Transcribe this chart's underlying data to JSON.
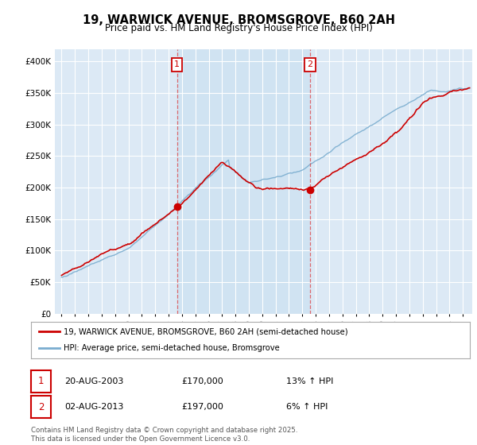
{
  "title": "19, WARWICK AVENUE, BROMSGROVE, B60 2AH",
  "subtitle": "Price paid vs. HM Land Registry's House Price Index (HPI)",
  "legend_line1": "19, WARWICK AVENUE, BROMSGROVE, B60 2AH (semi-detached house)",
  "legend_line2": "HPI: Average price, semi-detached house, Bromsgrove",
  "sale1_date": "20-AUG-2003",
  "sale1_price": "£170,000",
  "sale1_hpi": "13% ↑ HPI",
  "sale2_date": "02-AUG-2013",
  "sale2_price": "£197,000",
  "sale2_hpi": "6% ↑ HPI",
  "copyright": "Contains HM Land Registry data © Crown copyright and database right 2025.\nThis data is licensed under the Open Government Licence v3.0.",
  "line_color_red": "#cc0000",
  "line_color_blue": "#7aadcf",
  "sale1_x": 2003.64,
  "sale2_x": 2013.58,
  "sale1_y": 170000,
  "sale2_y": 197000,
  "plot_bg": "#dce9f5",
  "highlight_bg": "#c8dff0",
  "ylim": [
    0,
    420000
  ],
  "xlim_start": 1994.5,
  "xlim_end": 2025.7,
  "yticks": [
    0,
    50000,
    100000,
    150000,
    200000,
    250000,
    300000,
    350000,
    400000
  ],
  "xticks": [
    1995,
    1996,
    1997,
    1998,
    1999,
    2000,
    2001,
    2002,
    2003,
    2004,
    2005,
    2006,
    2007,
    2008,
    2009,
    2010,
    2011,
    2012,
    2013,
    2014,
    2015,
    2016,
    2017,
    2018,
    2019,
    2020,
    2021,
    2022,
    2023,
    2024,
    2025
  ]
}
